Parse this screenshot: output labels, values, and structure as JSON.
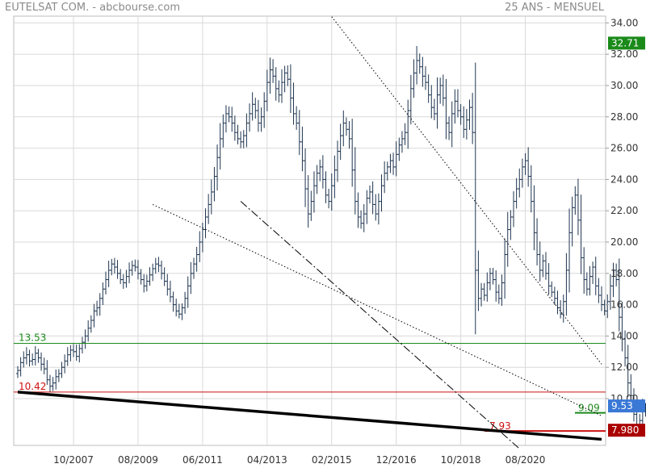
{
  "header": {
    "title": "EUTELSAT COM. - abcbourse.com",
    "period": "25 ANS - MENSUEL"
  },
  "colors": {
    "candle": "#1f3550",
    "grid": "#d9d9d9",
    "green": "#1a8a1a",
    "red": "#cc1111",
    "blue": "#3a78d6",
    "dark_red": "#aa0000"
  },
  "chart_data": {
    "type": "ohlc",
    "ylim": [
      7,
      34
    ],
    "yticks": [
      10,
      12,
      14,
      16,
      18,
      20,
      22,
      24,
      26,
      28,
      30,
      32,
      34
    ],
    "ytick_labels": [
      "10.00",
      "12.00",
      "14.00",
      "16.00",
      "18.00",
      "20.00",
      "22.00",
      "24.00",
      "26.00",
      "28.00",
      "30.00",
      "32.00",
      "34.00"
    ],
    "xlim": [
      "2006-03",
      "2022-10"
    ],
    "xticks": [
      "2007-10",
      "2009-08",
      "2011-06",
      "2013-04",
      "2015-02",
      "2016-12",
      "2018-10",
      "2020-08"
    ],
    "xtick_labels": [
      "10/2007",
      "08/2009",
      "06/2011",
      "04/2013",
      "02/2015",
      "12/2016",
      "10/2018",
      "08/2020"
    ],
    "monthly_close": [
      11.8,
      12.3,
      12.6,
      12.8,
      12.4,
      12.5,
      12.9,
      12.6,
      12.2,
      11.9,
      11.2,
      10.8,
      11.0,
      11.4,
      11.6,
      12.0,
      12.4,
      12.8,
      13.1,
      13.0,
      12.7,
      13.2,
      13.6,
      14.0,
      14.5,
      15.0,
      15.6,
      15.8,
      16.4,
      17.0,
      17.6,
      18.2,
      18.6,
      18.4,
      18.0,
      17.6,
      17.4,
      17.8,
      18.2,
      18.5,
      18.4,
      18.0,
      17.6,
      17.2,
      17.5,
      17.9,
      18.3,
      18.6,
      18.5,
      18.0,
      17.5,
      17.0,
      16.5,
      16.0,
      15.6,
      15.4,
      15.8,
      16.4,
      17.2,
      18.0,
      18.6,
      19.2,
      20.0,
      20.8,
      21.6,
      22.4,
      23.2,
      24.2,
      25.4,
      26.6,
      27.6,
      28.2,
      28.0,
      27.6,
      27.0,
      26.6,
      26.4,
      26.8,
      27.6,
      28.2,
      28.8,
      28.4,
      27.6,
      28.0,
      29.0,
      30.2,
      31.0,
      30.6,
      29.8,
      29.4,
      30.2,
      30.8,
      30.4,
      29.2,
      28.2,
      27.6,
      26.4,
      25.2,
      23.4,
      21.8,
      22.6,
      23.6,
      24.4,
      24.8,
      24.0,
      23.0,
      22.6,
      23.6,
      24.6,
      25.8,
      26.8,
      27.6,
      27.2,
      26.6,
      24.6,
      22.6,
      21.6,
      21.2,
      21.8,
      22.8,
      23.2,
      22.4,
      21.8,
      22.6,
      23.6,
      24.4,
      24.8,
      25.2,
      24.8,
      25.6,
      26.2,
      26.6,
      27.0,
      28.4,
      29.8,
      30.8,
      31.6,
      31.2,
      30.6,
      30.2,
      29.4,
      28.6,
      28.2,
      29.4,
      30.0,
      29.2,
      27.6,
      27.0,
      28.2,
      29.0,
      28.4,
      28.0,
      27.2,
      27.8,
      28.6,
      27.0,
      18.2,
      16.4,
      17.0,
      16.6,
      17.4,
      18.0,
      17.6,
      16.8,
      16.4,
      17.4,
      19.2,
      20.8,
      21.6,
      22.6,
      23.4,
      24.0,
      24.8,
      25.2,
      24.2,
      22.6,
      20.6,
      19.2,
      18.2,
      18.8,
      18.0,
      17.2,
      16.8,
      16.4,
      15.8,
      15.4,
      16.2,
      18.2,
      20.6,
      22.2,
      23.0,
      21.4,
      19.0,
      17.6,
      17.0,
      17.8,
      18.4,
      17.2,
      16.6,
      16.0,
      15.6,
      16.2,
      17.2,
      18.2,
      17.6,
      15.2,
      13.8,
      12.6,
      11.0,
      10.2,
      9.0,
      8.2,
      8.6,
      9.4,
      9.2,
      8.4,
      8.2,
      8.6,
      9.0,
      9.4,
      9.8,
      10.0,
      10.2,
      10.4,
      10.6,
      10.5,
      10.2,
      10.0,
      9.8,
      10.2,
      11.2,
      12.4,
      13.2,
      12.0,
      10.6,
      10.4,
      10.8,
      11.2,
      10.2,
      9.53
    ],
    "horizontal_levels": [
      {
        "value": 13.53,
        "label": "13.53",
        "color": "green"
      },
      {
        "value": 10.42,
        "label": "10.42",
        "color": "red"
      },
      {
        "value": 9.09,
        "label": "9.09",
        "color": "green"
      },
      {
        "value": 7.93,
        "label": "7.93",
        "color": "red"
      }
    ],
    "trendlines": [
      {
        "style": "dotted",
        "from": [
          "2015-02",
          34.4
        ],
        "to": [
          "2022-10",
          12.2
        ]
      },
      {
        "style": "dotted",
        "from": [
          "2010-01",
          22.4
        ],
        "to": [
          "2022-10",
          8.9
        ]
      },
      {
        "style": "dashdot",
        "from": [
          "2012-07",
          22.6
        ],
        "to": [
          "2020-06",
          6.8
        ]
      },
      {
        "style": "solid-thick",
        "from": [
          "2006-03",
          10.42
        ],
        "to": [
          "2022-10",
          7.4
        ]
      }
    ],
    "price_tags": [
      {
        "value": 32.71,
        "label": "32.71",
        "color": "green"
      },
      {
        "value": 9.53,
        "label": "9.53",
        "color": "blue"
      },
      {
        "value": 7.98,
        "label": "7.980",
        "color": "dark_red"
      }
    ]
  }
}
